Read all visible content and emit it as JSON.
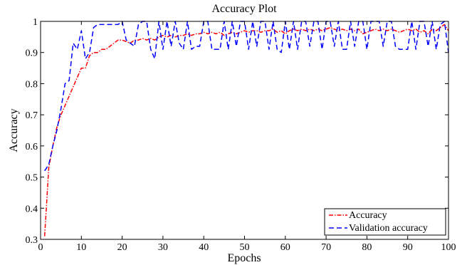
{
  "chart_data": {
    "type": "line",
    "title": "Accuracy Plot",
    "xlabel": "Epochs",
    "ylabel": "Accuracy",
    "xlim": [
      0,
      100
    ],
    "ylim": [
      0.3,
      1.0
    ],
    "xticks": [
      0,
      10,
      20,
      30,
      40,
      50,
      60,
      70,
      80,
      90,
      100
    ],
    "yticks": [
      0.3,
      0.4,
      0.5,
      0.6,
      0.7,
      0.8,
      0.9,
      1.0
    ],
    "xtick_labels": [
      "0",
      "10",
      "20",
      "30",
      "40",
      "50",
      "60",
      "70",
      "80",
      "90",
      "100"
    ],
    "ytick_labels": [
      "0.3",
      "0.4",
      "0.5",
      "0.6",
      "0.7",
      "0.8",
      "0.9",
      "1"
    ],
    "grid": false,
    "legend_position": "bottom-right",
    "x": [
      1,
      2,
      3,
      4,
      5,
      6,
      7,
      8,
      9,
      10,
      11,
      12,
      13,
      14,
      15,
      16,
      17,
      18,
      19,
      20,
      21,
      22,
      23,
      24,
      25,
      26,
      27,
      28,
      29,
      30,
      31,
      32,
      33,
      34,
      35,
      36,
      37,
      38,
      39,
      40,
      41,
      42,
      43,
      44,
      45,
      46,
      47,
      48,
      49,
      50,
      51,
      52,
      53,
      54,
      55,
      56,
      57,
      58,
      59,
      60,
      61,
      62,
      63,
      64,
      65,
      66,
      67,
      68,
      69,
      70,
      71,
      72,
      73,
      74,
      75,
      76,
      77,
      78,
      79,
      80,
      81,
      82,
      83,
      84,
      85,
      86,
      87,
      88,
      89,
      90,
      91,
      92,
      93,
      94,
      95,
      96,
      97,
      98,
      99,
      100
    ],
    "series": [
      {
        "name": "Accuracy",
        "color": "#ff0000",
        "style": "dashdot",
        "values": [
          0.31,
          0.53,
          0.6,
          0.66,
          0.7,
          0.73,
          0.76,
          0.79,
          0.82,
          0.85,
          0.85,
          0.89,
          0.9,
          0.9,
          0.91,
          0.91,
          0.92,
          0.93,
          0.94,
          0.94,
          0.935,
          0.93,
          0.94,
          0.94,
          0.945,
          0.94,
          0.945,
          0.94,
          0.95,
          0.955,
          0.95,
          0.955,
          0.95,
          0.955,
          0.955,
          0.96,
          0.955,
          0.96,
          0.96,
          0.965,
          0.96,
          0.965,
          0.96,
          0.965,
          0.955,
          0.96,
          0.965,
          0.96,
          0.965,
          0.97,
          0.965,
          0.97,
          0.97,
          0.965,
          0.97,
          0.97,
          0.975,
          0.965,
          0.97,
          0.96,
          0.97,
          0.975,
          0.97,
          0.975,
          0.97,
          0.975,
          0.97,
          0.975,
          0.97,
          0.975,
          0.98,
          0.975,
          0.97,
          0.975,
          0.97,
          0.975,
          0.97,
          0.975,
          0.96,
          0.965,
          0.97,
          0.975,
          0.97,
          0.975,
          0.97,
          0.975,
          0.97,
          0.965,
          0.97,
          0.975,
          0.97,
          0.975,
          0.965,
          0.97,
          0.96,
          0.975,
          0.97,
          0.98,
          0.99,
          0.97
        ]
      },
      {
        "name": "Validation accuracy",
        "color": "#0000ff",
        "style": "dashed",
        "values": [
          0.52,
          0.54,
          0.6,
          0.65,
          0.72,
          0.8,
          0.81,
          0.93,
          0.91,
          0.97,
          0.88,
          0.9,
          0.98,
          0.99,
          0.99,
          0.99,
          0.99,
          0.99,
          0.99,
          1.0,
          0.94,
          0.93,
          0.92,
          0.99,
          1.0,
          1.0,
          0.91,
          0.88,
          1.0,
          0.91,
          1.0,
          0.92,
          1.0,
          0.93,
          0.91,
          1.0,
          0.91,
          0.92,
          0.92,
          1.0,
          1.0,
          0.91,
          0.91,
          0.91,
          1.0,
          0.91,
          1.0,
          0.92,
          1.0,
          1.0,
          0.91,
          1.0,
          0.92,
          1.0,
          1.0,
          0.91,
          1.0,
          0.91,
          0.9,
          1.0,
          0.91,
          1.0,
          0.91,
          1.0,
          1.0,
          0.92,
          1.0,
          1.0,
          0.91,
          1.0,
          1.0,
          0.92,
          1.0,
          0.91,
          0.91,
          1.0,
          0.92,
          1.0,
          1.0,
          0.91,
          1.0,
          1.0,
          1.0,
          0.92,
          1.0,
          1.0,
          0.92,
          0.91,
          0.91,
          0.91,
          1.0,
          0.91,
          1.0,
          1.0,
          0.92,
          1.0,
          0.91,
          0.99,
          1.0,
          0.9
        ]
      }
    ]
  }
}
